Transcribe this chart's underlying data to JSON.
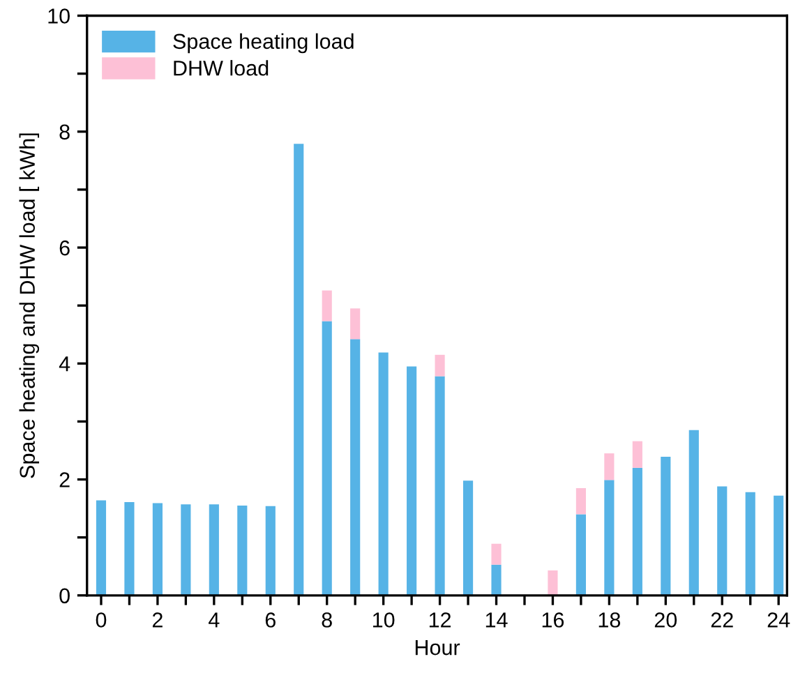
{
  "chart_data": {
    "type": "bar",
    "stacked": true,
    "xlabel": "Hour",
    "ylabel": "Space heating and DHW load [ kWh]",
    "x": [
      0,
      1,
      2,
      3,
      4,
      5,
      6,
      7,
      8,
      9,
      10,
      11,
      12,
      13,
      14,
      15,
      16,
      17,
      18,
      19,
      20,
      21,
      22,
      23,
      24
    ],
    "series": [
      {
        "name": "Space heating load",
        "color": "#56b3e6",
        "values": [
          1.64,
          1.61,
          1.59,
          1.57,
          1.57,
          1.55,
          1.54,
          7.79,
          4.73,
          4.42,
          4.19,
          3.95,
          3.78,
          1.98,
          0.53,
          0,
          0,
          1.4,
          1.99,
          2.2,
          2.39,
          2.85,
          1.88,
          1.78,
          1.72
        ]
      },
      {
        "name": "DHW load",
        "color": "#fdc0d6",
        "values": [
          0,
          0,
          0,
          0,
          0,
          0,
          0,
          0,
          0.53,
          0.53,
          0,
          0,
          0.37,
          0,
          0.36,
          0,
          0.43,
          0.45,
          0.46,
          0.46,
          0,
          0,
          0,
          0,
          0
        ]
      }
    ],
    "xlim": [
      -0.5,
      24.3
    ],
    "xticks": [
      0,
      {
        "value": 1,
        "label": null
      },
      2,
      {
        "value": 3,
        "label": null
      },
      4,
      {
        "value": 5,
        "label": null
      },
      6,
      {
        "value": 7,
        "label": null
      },
      8,
      {
        "value": 9,
        "label": null
      },
      10,
      {
        "value": 11,
        "label": null
      },
      12,
      {
        "value": 13,
        "label": null
      },
      14,
      {
        "value": 15,
        "label": null
      },
      16,
      {
        "value": 17,
        "label": null
      },
      18,
      {
        "value": 19,
        "label": null
      },
      20,
      {
        "value": 21,
        "label": null
      },
      22,
      {
        "value": 23,
        "label": null
      },
      24
    ],
    "ylim": [
      0,
      10
    ],
    "yticks": [
      0,
      {
        "value": 1,
        "label": null
      },
      2,
      {
        "value": 3,
        "label": null
      },
      4,
      {
        "value": 5,
        "label": null
      },
      6,
      {
        "value": 7,
        "label": null
      },
      8,
      {
        "value": 9,
        "label": null
      },
      10
    ],
    "grid": false,
    "legend": "top left"
  }
}
